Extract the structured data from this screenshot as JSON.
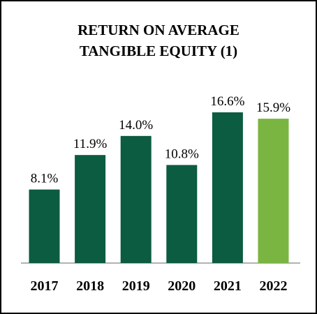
{
  "chart_data": {
    "type": "bar",
    "title": [
      "RETURN ON AVERAGE",
      "TANGIBLE EQUITY (1)"
    ],
    "categories": [
      "2017",
      "2018",
      "2019",
      "2020",
      "2021",
      "2022"
    ],
    "values": [
      8.1,
      11.9,
      14.0,
      10.8,
      16.6,
      15.9
    ],
    "value_labels": [
      "8.1%",
      "11.9%",
      "14.0%",
      "10.8%",
      "16.6%",
      "15.9%"
    ],
    "colors": [
      "#0b5c40",
      "#0b5c40",
      "#0b5c40",
      "#0b5c40",
      "#0b5c40",
      "#7ab542"
    ]
  }
}
